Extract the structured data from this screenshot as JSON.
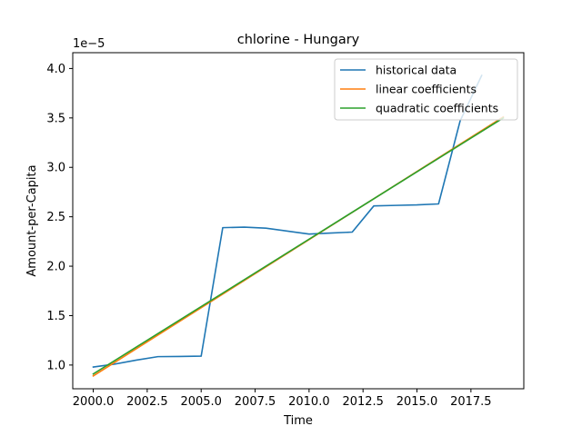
{
  "chart_data": {
    "type": "line",
    "title": "chlorine - Hungary",
    "xlabel": "Time",
    "ylabel": "Amount-per-Capita",
    "y_offset_text": "1e−5",
    "xlim": [
      1999.05,
      2019.95
    ],
    "ylim": [
      0.76,
      4.16
    ],
    "x_ticks": [
      2000,
      2002.5,
      2005,
      2007.5,
      2010,
      2012.5,
      2015,
      2017.5
    ],
    "x_tick_labels": [
      "2000.0",
      "2002.5",
      "2005.0",
      "2007.5",
      "2010.0",
      "2012.5",
      "2015.0",
      "2017.5"
    ],
    "y_ticks": [
      1.0,
      1.5,
      2.0,
      2.5,
      3.0,
      3.5,
      4.0
    ],
    "y_tick_labels": [
      "1.0",
      "1.5",
      "2.0",
      "2.5",
      "3.0",
      "3.5",
      "4.0"
    ],
    "legend_position": "upper right",
    "series": [
      {
        "name": "historical data",
        "color": "#1f77b4",
        "x": [
          2000,
          2001,
          2002,
          2003,
          2004,
          2005,
          2006,
          2007,
          2008,
          2009,
          2010,
          2011,
          2012,
          2013,
          2014,
          2015,
          2016,
          2017,
          2018
        ],
        "y": [
          0.98,
          1.01,
          1.05,
          1.085,
          1.087,
          1.09,
          2.39,
          2.395,
          2.385,
          2.355,
          2.325,
          2.335,
          2.345,
          2.61,
          2.615,
          2.62,
          2.63,
          3.47,
          3.93
        ]
      },
      {
        "name": "linear coefficients",
        "color": "#ff7f0e",
        "x": [
          2000,
          2019
        ],
        "y": [
          0.89,
          3.51
        ]
      },
      {
        "name": "quadratic coefficients",
        "color": "#2ca02c",
        "x": [
          2000,
          2019
        ],
        "y": [
          0.91,
          3.5
        ]
      }
    ]
  }
}
